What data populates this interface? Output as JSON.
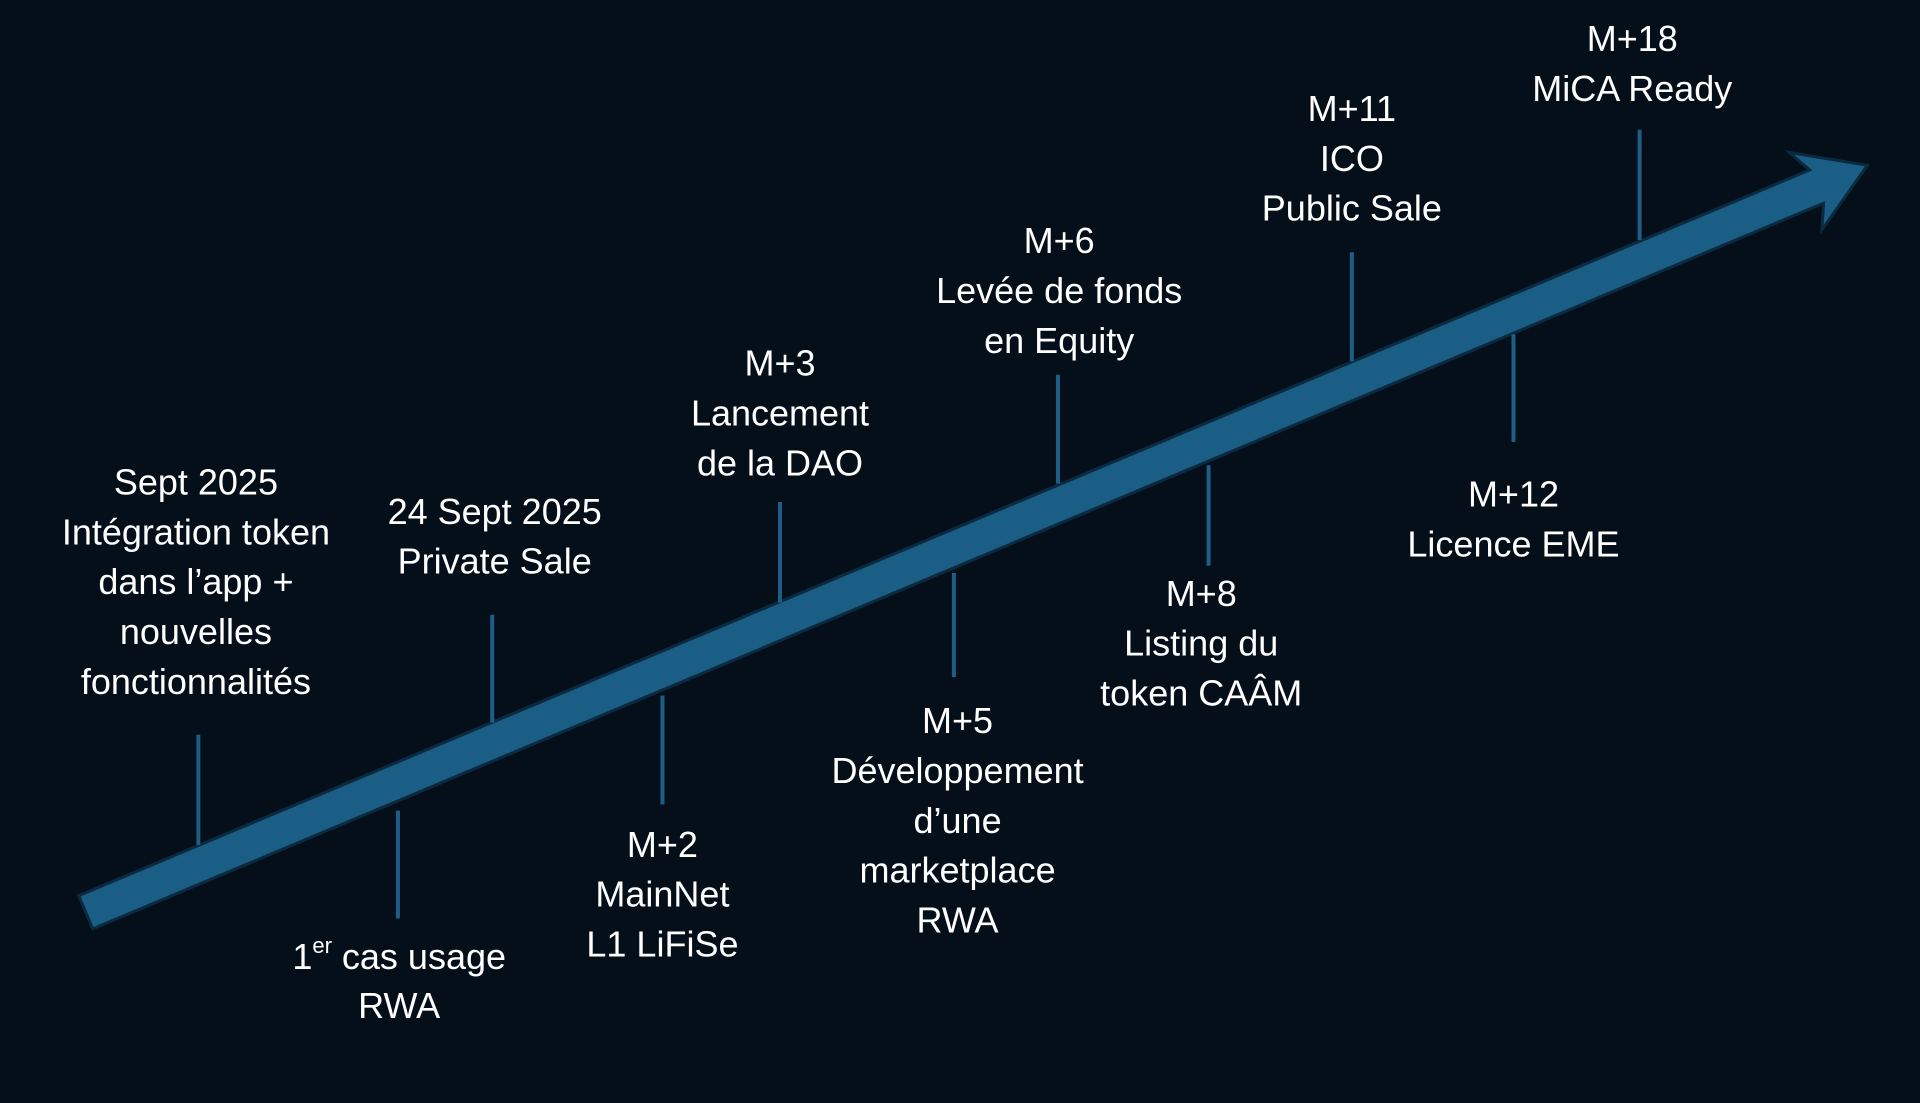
{
  "milestones": [
    {
      "lines": [
        "Sept 2025",
        "Intégration token",
        "dans l’app +",
        "nouvelles",
        "fonctionnalités"
      ]
    },
    {
      "lines": [
        [
          "1",
          "er",
          " cas usage"
        ],
        "RWA"
      ]
    },
    {
      "lines": [
        "24 Sept 2025",
        "Private Sale"
      ]
    },
    {
      "lines": [
        "M+2",
        "MainNet",
        "L1 LiFiSe"
      ]
    },
    {
      "lines": [
        "M+3",
        "Lancement",
        "de la DAO"
      ]
    },
    {
      "lines": [
        "M+5",
        "Développement",
        "d’une",
        "marketplace",
        "RWA"
      ]
    },
    {
      "lines": [
        "M+6",
        "Levée de fonds",
        "en Equity"
      ]
    },
    {
      "lines": [
        "M+8",
        "Listing du",
        "token CAÂM"
      ]
    },
    {
      "lines": [
        "M+11",
        "ICO",
        "Public Sale"
      ]
    },
    {
      "lines": [
        "M+12",
        "Licence EME"
      ]
    },
    {
      "lines": [
        "M+18",
        "MiCA Ready"
      ]
    }
  ]
}
